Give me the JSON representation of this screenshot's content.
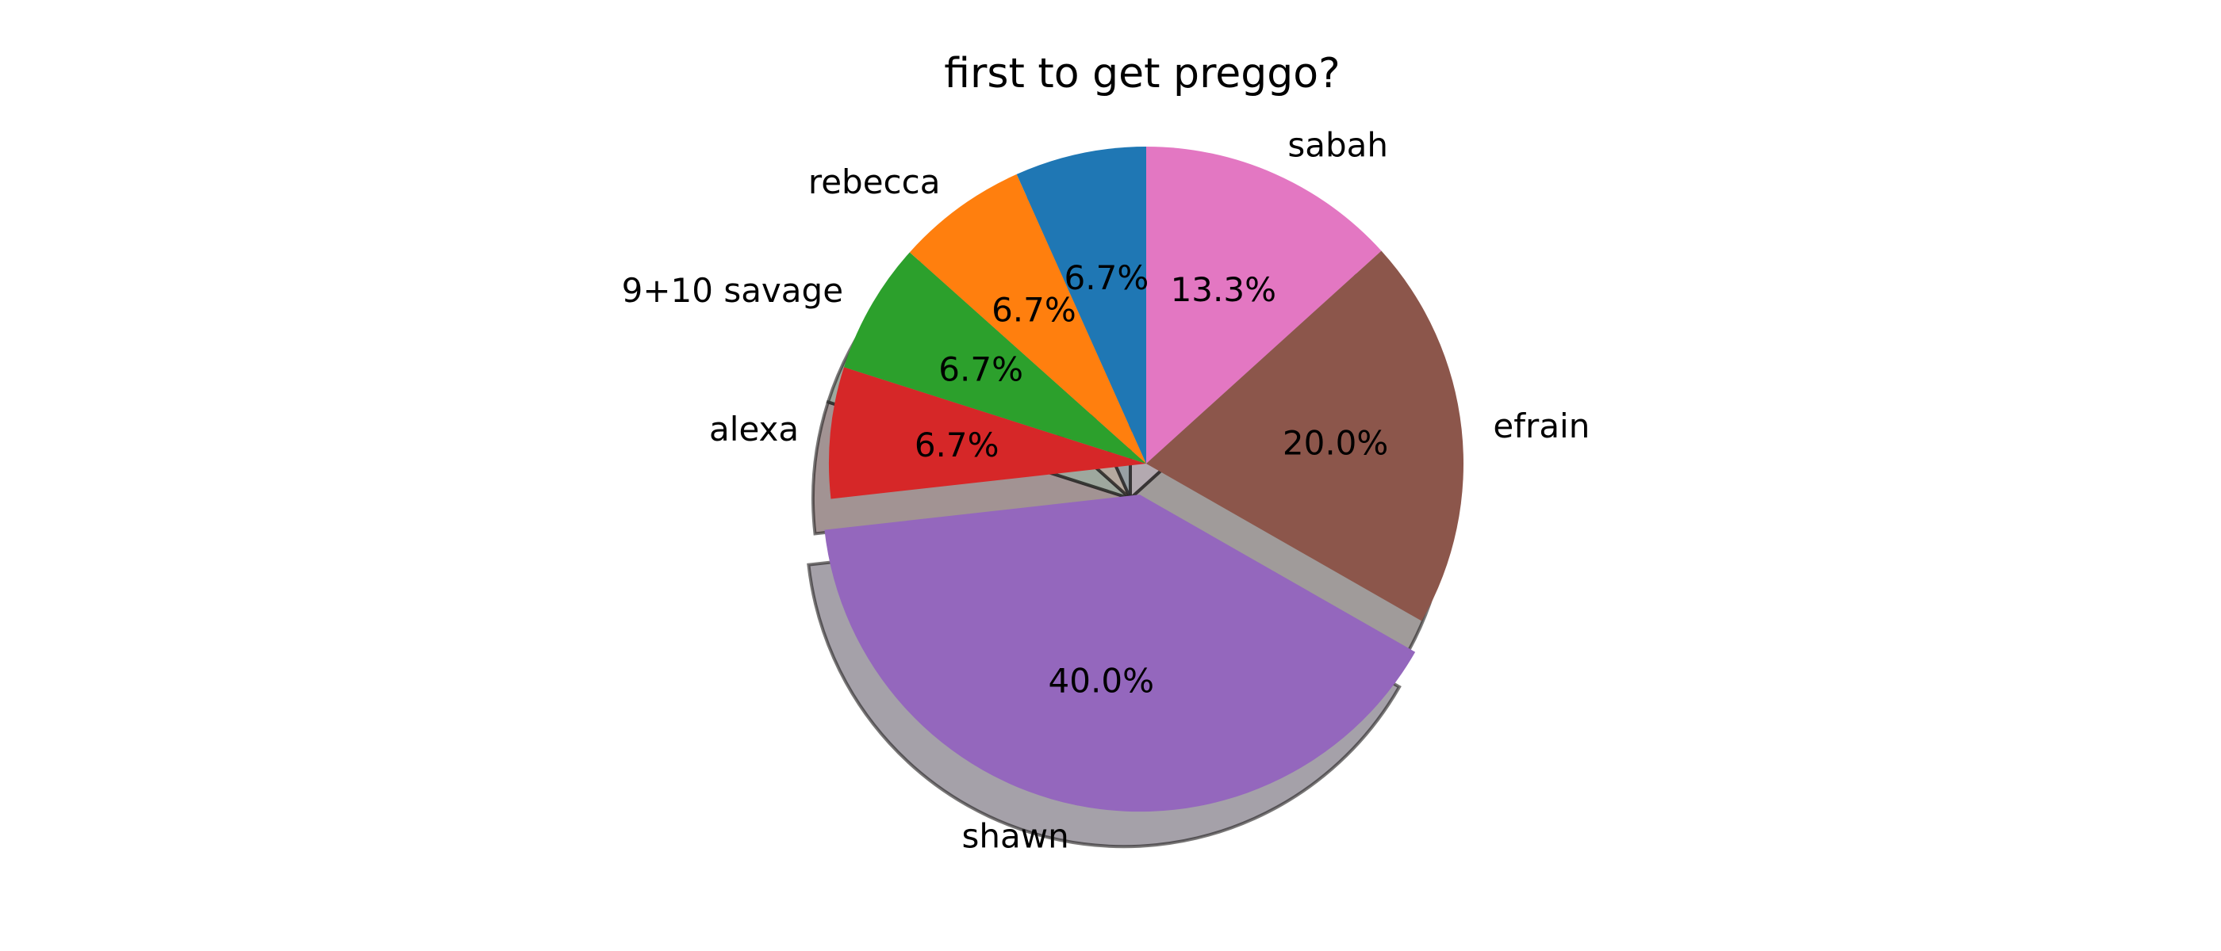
{
  "chart_data": {
    "type": "pie",
    "title": "first to get preggo?",
    "start_angle_deg": 90,
    "direction": "clockwise",
    "shadow": true,
    "slices": [
      {
        "label": "sabah",
        "value": 13.3,
        "pct_label": "13.3%",
        "color": "#e377c2",
        "exploded": false
      },
      {
        "label": "efrain",
        "value": 20.0,
        "pct_label": "20.0%",
        "color": "#8c564b",
        "exploded": false
      },
      {
        "label": "shawn",
        "value": 40.0,
        "pct_label": "40.0%",
        "color": "#9467bd",
        "exploded": true
      },
      {
        "label": "alexa",
        "value": 6.7,
        "pct_label": "6.7%",
        "color": "#d62728",
        "exploded": false
      },
      {
        "label": "9+10 savage",
        "value": 6.7,
        "pct_label": "6.7%",
        "color": "#2ca02c",
        "exploded": false
      },
      {
        "label": "rebecca",
        "value": 6.7,
        "pct_label": "6.7%",
        "color": "#ff7f0e",
        "exploded": false
      },
      {
        "label": "",
        "value": 6.7,
        "pct_label": "6.7%",
        "color": "#1f77b4",
        "exploded": false
      }
    ]
  }
}
